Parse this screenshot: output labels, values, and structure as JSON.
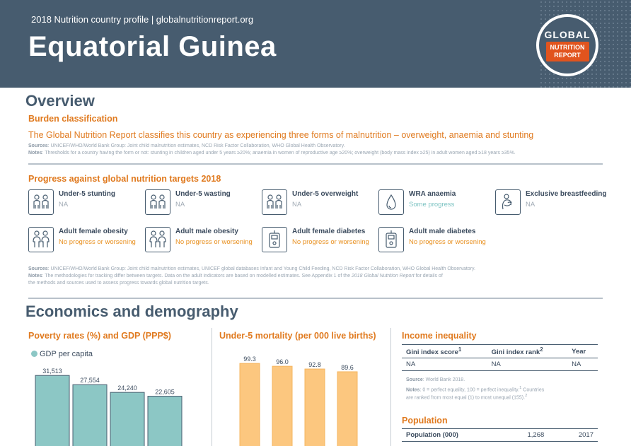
{
  "header": {
    "subtitle": "2018 Nutrition country profile  |  globalnutritionreport.org",
    "country": "Equatorial Guinea",
    "logo": {
      "top": "GLOBAL",
      "line1": "NUTRITION",
      "line2": "REPORT"
    }
  },
  "overview": {
    "title": "Overview",
    "burden_title": "Burden classification",
    "burden_text": "The Global Nutrition Report classifies this country as experiencing three forms of malnutrition – overweight, anaemia and stunting",
    "burden_sources_label": "Sources",
    "burden_sources": ": UNICEF/WHO/World Bank Group: Joint child malnutrition estimates, NCD Risk Factor Collaboration, WHO Global Health Observatory.",
    "burden_notes_label": "Notes",
    "burden_notes": ": Thresholds for a country having the form or not: stunting in children aged under 5 years ≥20%; anaemia in women of reproductive age ≥20%; overweight (body mass index ≥25) in adult women aged ≥18 years ≥35%.",
    "progress_title": "Progress against global nutrition targets 2018",
    "targets": [
      {
        "name": "Under-5 stunting",
        "status": "NA",
        "status_class": "st-na",
        "icon": "children-icon"
      },
      {
        "name": "Under-5 wasting",
        "status": "NA",
        "status_class": "st-na",
        "icon": "children-icon"
      },
      {
        "name": "Under-5 overweight",
        "status": "NA",
        "status_class": "st-na",
        "icon": "children-icon"
      },
      {
        "name": "WRA anaemia",
        "status": "Some progress",
        "status_class": "st-some",
        "icon": "blood-drop-icon"
      },
      {
        "name": "Exclusive breastfeeding",
        "status": "NA",
        "status_class": "st-na",
        "icon": "breastfeeding-icon"
      },
      {
        "name": "Adult female obesity",
        "status": "No progress or worsening",
        "status_class": "st-bad",
        "icon": "adults-icon"
      },
      {
        "name": "Adult male obesity",
        "status": "No progress or worsening",
        "status_class": "st-bad",
        "icon": "adults-icon"
      },
      {
        "name": "Adult female diabetes",
        "status": "No progress or worsening",
        "status_class": "st-bad",
        "icon": "glucose-meter-icon"
      },
      {
        "name": "Adult male diabetes",
        "status": "No progress or worsening",
        "status_class": "st-bad",
        "icon": "glucose-meter-icon"
      }
    ],
    "progress_sources_label": "Sources",
    "progress_sources": ": UNICEF/WHO/World Bank Group: Joint child malnutrition estimates, UNICEF global databases Infant and Young Child Feeding, NCD Risk Factor Collaboration, WHO Global Health Observatory.",
    "progress_notes_label": "Notes",
    "progress_notes_1": ": The methodologies for tracking differ between targets. Data on the adult indicators are based on modelled estimates. See Appendix 1 of the ",
    "progress_notes_italic": "2018 Global Nutrition Report",
    "progress_notes_2": " for details of",
    "progress_notes_line2": "the methods and sources used to assess progress towards global nutrition targets."
  },
  "economics": {
    "title": "Economics and demography",
    "poverty_title": "Poverty rates (%) and GDP (PPP$)",
    "mortality_title": "Under-5 mortality (per 000 live births)",
    "income_title": "Income inequality",
    "income_headers": [
      "Gini index score",
      "Gini index rank",
      "Year"
    ],
    "income_sups": [
      "1",
      "2",
      ""
    ],
    "income_row": [
      "NA",
      "NA",
      "NA"
    ],
    "income_source_label": "Source",
    "income_source": ": World Bank 2018.",
    "income_notes_label": "Notes",
    "income_notes_1": ": 0 = perfect equality, 100 = perfect inequality.",
    "income_notes_sup1": "1",
    "income_notes_2": " Countries",
    "income_notes_3": "are ranked from most equal (1) to most unequal (155).",
    "income_notes_sup2": "2",
    "population_title": "Population",
    "population_row": [
      "Population (000)",
      "1,268",
      "2017"
    ]
  },
  "chart_data": [
    {
      "type": "bar",
      "series": [
        {
          "name": "GDP per capita",
          "values": [
            31513,
            27554,
            24240,
            22605
          ]
        }
      ],
      "data_labels": [
        "31,513",
        "27,554",
        "24,240",
        "22,605"
      ],
      "ylim": [
        0,
        34000
      ],
      "color": "#8cc7c5"
    },
    {
      "type": "bar",
      "values": [
        99.3,
        96.0,
        92.8,
        89.6
      ],
      "data_labels": [
        "99.3",
        "96.0",
        "92.8",
        "89.6"
      ],
      "ylim": [
        0,
        106
      ],
      "color": "#fcc77f"
    }
  ]
}
